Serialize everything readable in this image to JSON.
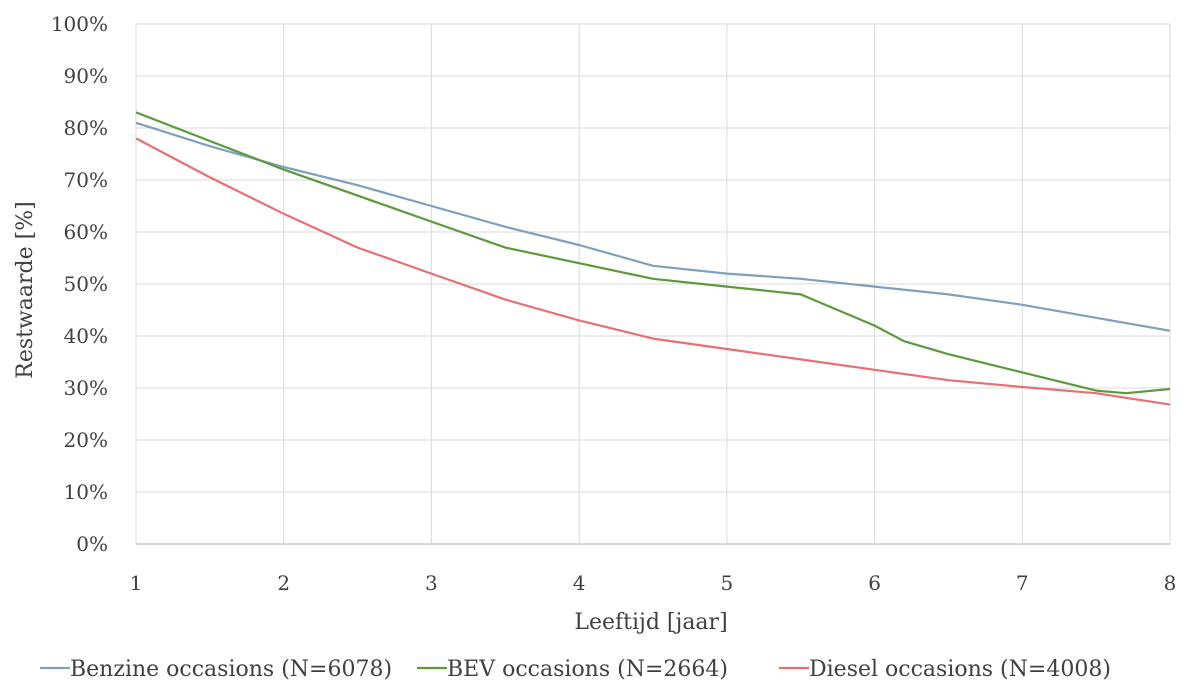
{
  "chart_data": {
    "type": "line",
    "xlabel": "Leeftijd [jaar]",
    "ylabel": "Restwaarde [%]",
    "xlim": [
      1,
      8
    ],
    "ylim": [
      0,
      100
    ],
    "x_ticks": [
      "1",
      "2",
      "3",
      "4",
      "5",
      "6",
      "7",
      "8"
    ],
    "y_ticks": [
      "0%",
      "10%",
      "20%",
      "30%",
      "40%",
      "50%",
      "60%",
      "70%",
      "80%",
      "90%",
      "100%"
    ],
    "grid": true,
    "legend_position": "bottom",
    "series": [
      {
        "name": "Benzine occasions (N=6078)",
        "color": "#7f9fbf",
        "x": [
          1,
          1.5,
          2,
          2.5,
          3,
          3.5,
          4,
          4.5,
          5,
          5.5,
          6,
          6.5,
          7,
          7.5,
          8
        ],
        "y": [
          81,
          76.5,
          72.5,
          69,
          65,
          61,
          57.5,
          53.5,
          52,
          51,
          49.5,
          48,
          46,
          43.5,
          41
        ]
      },
      {
        "name": "BEV occasions (N=2664)",
        "color": "#5a9a3a",
        "x": [
          1,
          1.5,
          2,
          2.5,
          3,
          3.5,
          4,
          4.5,
          5,
          5.5,
          6,
          6.2,
          6.5,
          7,
          7.5,
          7.7,
          8
        ],
        "y": [
          83,
          77.5,
          72,
          67,
          62,
          57,
          54,
          51,
          49.5,
          48,
          42,
          39,
          36.5,
          33,
          29.5,
          29,
          29.8
        ]
      },
      {
        "name": "Diesel occasions (N=4008)",
        "color": "#e87070",
        "x": [
          1,
          1.5,
          2,
          2.5,
          3,
          3.5,
          4,
          4.5,
          5,
          5.5,
          6,
          6.5,
          7,
          7.5,
          8
        ],
        "y": [
          78,
          70.5,
          63.5,
          57,
          52,
          47,
          43,
          39.5,
          37.5,
          35.5,
          33.5,
          31.5,
          30.2,
          29,
          26.8
        ]
      }
    ]
  }
}
